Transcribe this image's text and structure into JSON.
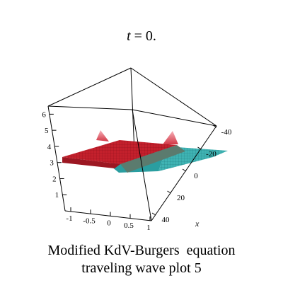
{
  "chart_data": {
    "type": "surface3d",
    "title": {
      "var": "t",
      "rest": " = 0."
    },
    "axes": {
      "x": {
        "label": "x",
        "range": [
          -40,
          40
        ],
        "ticks": [
          "-40",
          "-20",
          "0",
          "20",
          "40"
        ]
      },
      "y": {
        "label": "",
        "range": [
          -1,
          1
        ],
        "ticks": [
          "-1",
          "-0.5",
          "0",
          "0.5",
          "1"
        ]
      },
      "z": {
        "label": "",
        "range": [
          0,
          6
        ],
        "ticks": [
          "1",
          "2",
          "3",
          "4",
          "5",
          "6"
        ]
      }
    },
    "surface": {
      "plateaus": [
        {
          "name": "",
          "z": 3.7,
          "color": "#c4202c"
        },
        {
          "name": "",
          "z": 3.0,
          "color": "#3fb3b3"
        }
      ],
      "peak_z": 5.0
    },
    "box": "framed"
  },
  "caption": {
    "line1": "Modified KdV-Burgers  equation",
    "line2": "traveling wave plot 5"
  }
}
